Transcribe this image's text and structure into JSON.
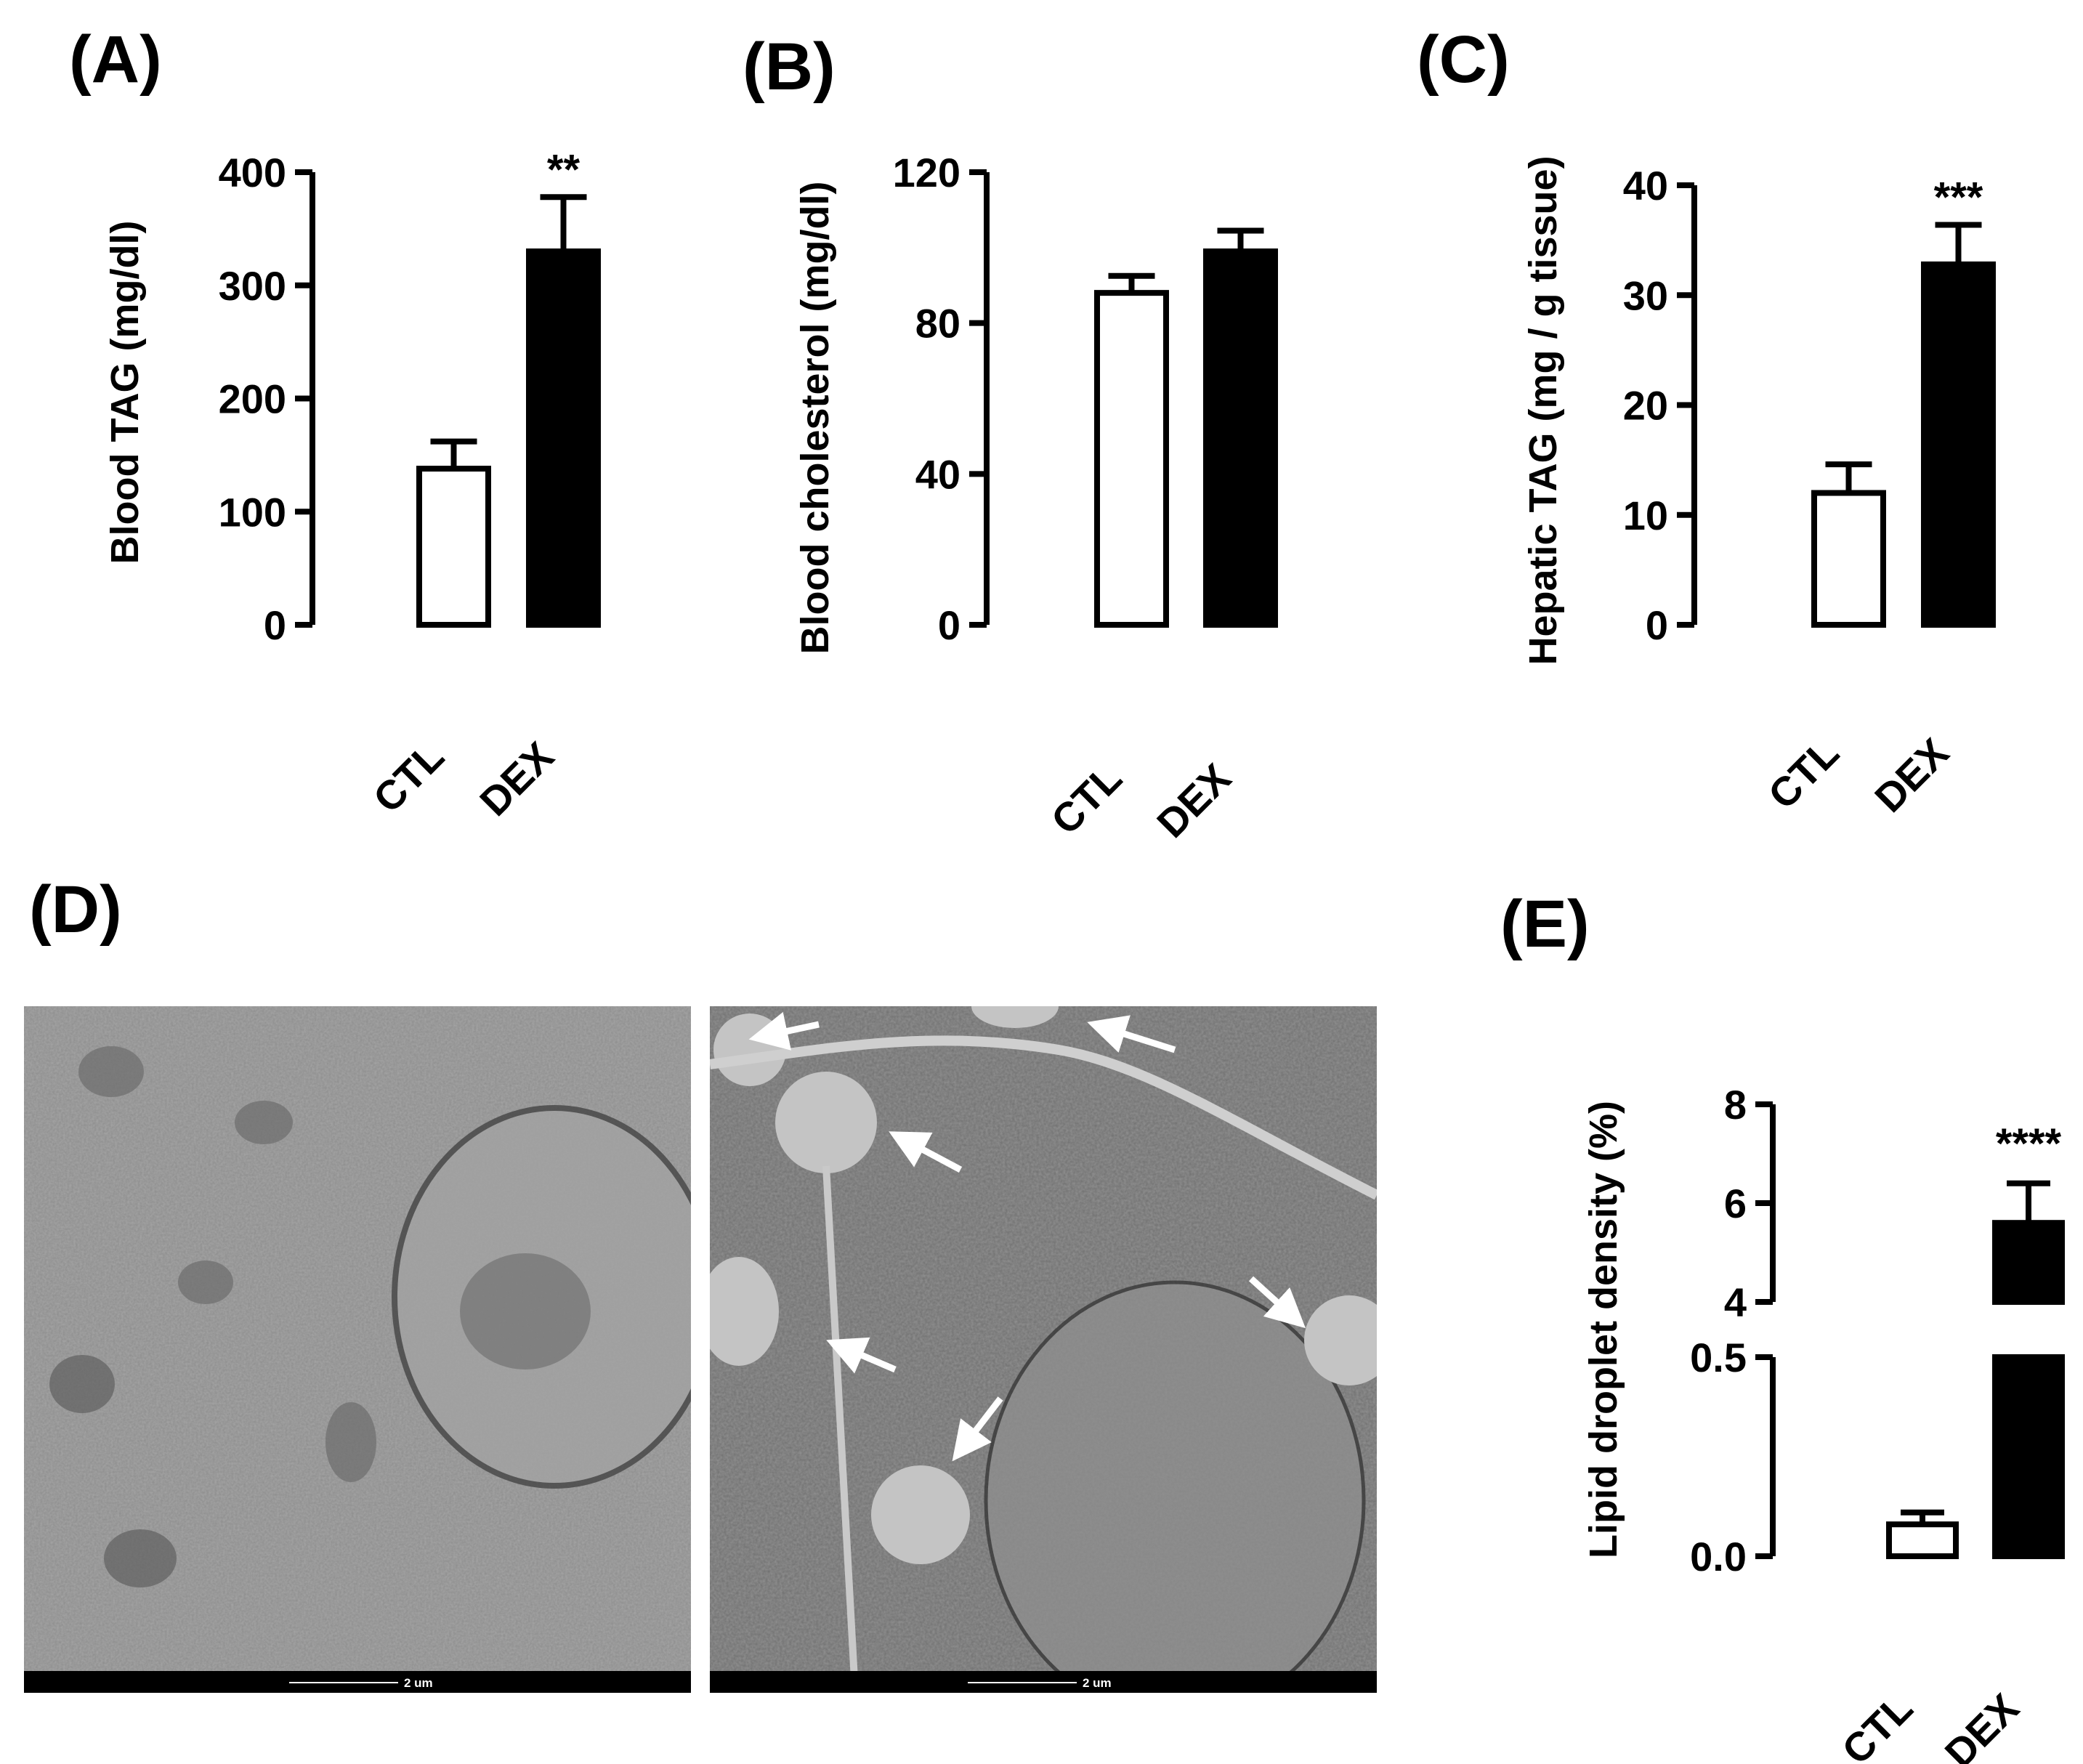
{
  "panels": {
    "A": "(A)",
    "B": "(B)",
    "C": "(C)",
    "D": "(D)",
    "E": "(E)"
  },
  "colors": {
    "ctl_fill": "#ffffff",
    "dex_fill": "#000000",
    "axis": "#000000"
  },
  "micrographs": {
    "ctl_scale": "2 um",
    "dex_scale": "2 um"
  },
  "chart_data": [
    {
      "id": "A",
      "type": "bar",
      "ylabel": "Blood TAG (mg/dl)",
      "categories": [
        "CTL",
        "DEX"
      ],
      "values": [
        138,
        330
      ],
      "errors": [
        24,
        48
      ],
      "ylim": [
        0,
        400
      ],
      "yticks": [
        "0",
        "100",
        "200",
        "300",
        "400"
      ],
      "significance": [
        "",
        "**"
      ]
    },
    {
      "id": "B",
      "type": "bar",
      "ylabel": "Blood cholesterol  (mg/dl)",
      "categories": [
        "CTL",
        "DEX"
      ],
      "values": [
        88,
        99
      ],
      "errors": [
        4.5,
        5.5
      ],
      "ylim": [
        0,
        120
      ],
      "yticks": [
        "0",
        "40",
        "80",
        "120"
      ],
      "significance": [
        "",
        ""
      ]
    },
    {
      "id": "C",
      "type": "bar",
      "ylabel": "Hepatic TAG (mg / g tissue)",
      "categories": [
        "CTL",
        "DEX"
      ],
      "values": [
        12,
        32.8
      ],
      "errors": [
        2.6,
        3.6
      ],
      "ylim": [
        0,
        40
      ],
      "yticks": [
        "0",
        "10",
        "20",
        "30",
        "40"
      ],
      "significance": [
        "",
        "***"
      ]
    },
    {
      "id": "E",
      "type": "bar",
      "ylabel": "Lipid droplet density (%)",
      "categories": [
        "CTL",
        "DEX"
      ],
      "values": [
        0.08,
        5.6
      ],
      "errors": [
        0.03,
        0.8
      ],
      "broken_axis": {
        "lower_range": [
          0,
          0.5
        ],
        "upper_range": [
          4,
          8
        ]
      },
      "yticks_lower": [
        "0.0",
        "0.5"
      ],
      "yticks_upper": [
        "4",
        "6",
        "8"
      ],
      "significance": [
        "",
        "****"
      ]
    }
  ]
}
